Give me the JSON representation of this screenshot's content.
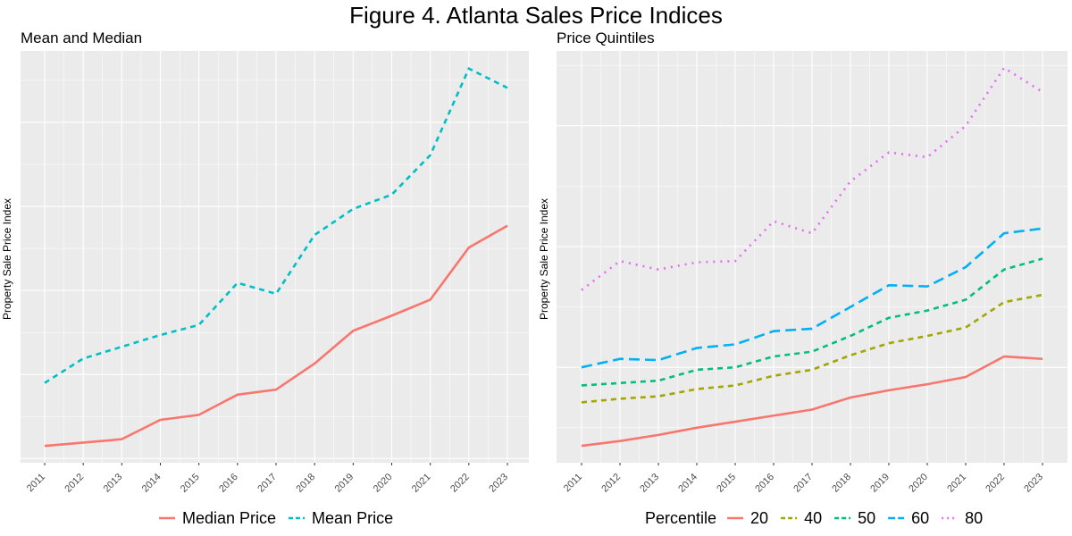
{
  "title": "Figure 4. Atlanta Sales Price Indices",
  "chart_data": [
    {
      "type": "line",
      "title": "Mean and Median",
      "xlabel": "",
      "ylabel": "Property Sale Price Index",
      "x": [
        "2011",
        "2012",
        "2013",
        "2014",
        "2015",
        "2016",
        "2017",
        "2018",
        "2019",
        "2020",
        "2021",
        "2022",
        "2023"
      ],
      "ylim": [
        -0.05,
        4.85
      ],
      "y_ticks_labeled": false,
      "grid": true,
      "legend_position": "bottom",
      "series": [
        {
          "name": "Median Price",
          "color": "#F8766D",
          "linetype": "solid",
          "values": [
            0.15,
            0.19,
            0.23,
            0.46,
            0.52,
            0.76,
            0.82,
            1.13,
            1.52,
            1.7,
            1.89,
            2.51,
            2.77
          ]
        },
        {
          "name": "Mean Price",
          "color": "#00BFC4",
          "linetype": "dashed",
          "values": [
            0.9,
            1.19,
            1.33,
            1.47,
            1.59,
            2.09,
            1.96,
            2.66,
            2.97,
            3.14,
            3.61,
            4.64,
            4.41
          ]
        }
      ]
    },
    {
      "type": "line",
      "title": "Price Quintiles",
      "xlabel": "",
      "ylabel": "Property Sale Price Index",
      "x": [
        "2011",
        "2012",
        "2013",
        "2014",
        "2015",
        "2016",
        "2017",
        "2018",
        "2019",
        "2020",
        "2021",
        "2022",
        "2023"
      ],
      "ylim": [
        0,
        3.41
      ],
      "y_ticks_labeled": false,
      "grid": true,
      "legend_position": "bottom",
      "legend_title": "Percentile",
      "series": [
        {
          "name": "20",
          "color": "#F8766D",
          "linetype": "solid",
          "values": [
            0.14,
            0.18,
            0.23,
            0.29,
            0.34,
            0.39,
            0.44,
            0.54,
            0.6,
            0.65,
            0.71,
            0.88,
            0.86
          ]
        },
        {
          "name": "40",
          "color": "#A3A500",
          "linetype": "dashed",
          "values": [
            0.5,
            0.53,
            0.55,
            0.61,
            0.64,
            0.72,
            0.77,
            0.89,
            0.99,
            1.05,
            1.12,
            1.33,
            1.39
          ]
        },
        {
          "name": "50",
          "color": "#00BF7D",
          "linetype": "dashed",
          "values": [
            0.64,
            0.66,
            0.68,
            0.77,
            0.79,
            0.88,
            0.92,
            1.05,
            1.2,
            1.26,
            1.35,
            1.6,
            1.69
          ]
        },
        {
          "name": "60",
          "color": "#00B0F6",
          "linetype": "longdash",
          "values": [
            0.79,
            0.86,
            0.85,
            0.95,
            0.98,
            1.09,
            1.11,
            1.29,
            1.47,
            1.46,
            1.62,
            1.9,
            1.94
          ]
        },
        {
          "name": "80",
          "color": "#E76BF3",
          "linetype": "dotted",
          "values": [
            1.43,
            1.67,
            1.6,
            1.66,
            1.67,
            2.0,
            1.9,
            2.33,
            2.57,
            2.53,
            2.79,
            3.27,
            3.07
          ]
        }
      ]
    }
  ]
}
